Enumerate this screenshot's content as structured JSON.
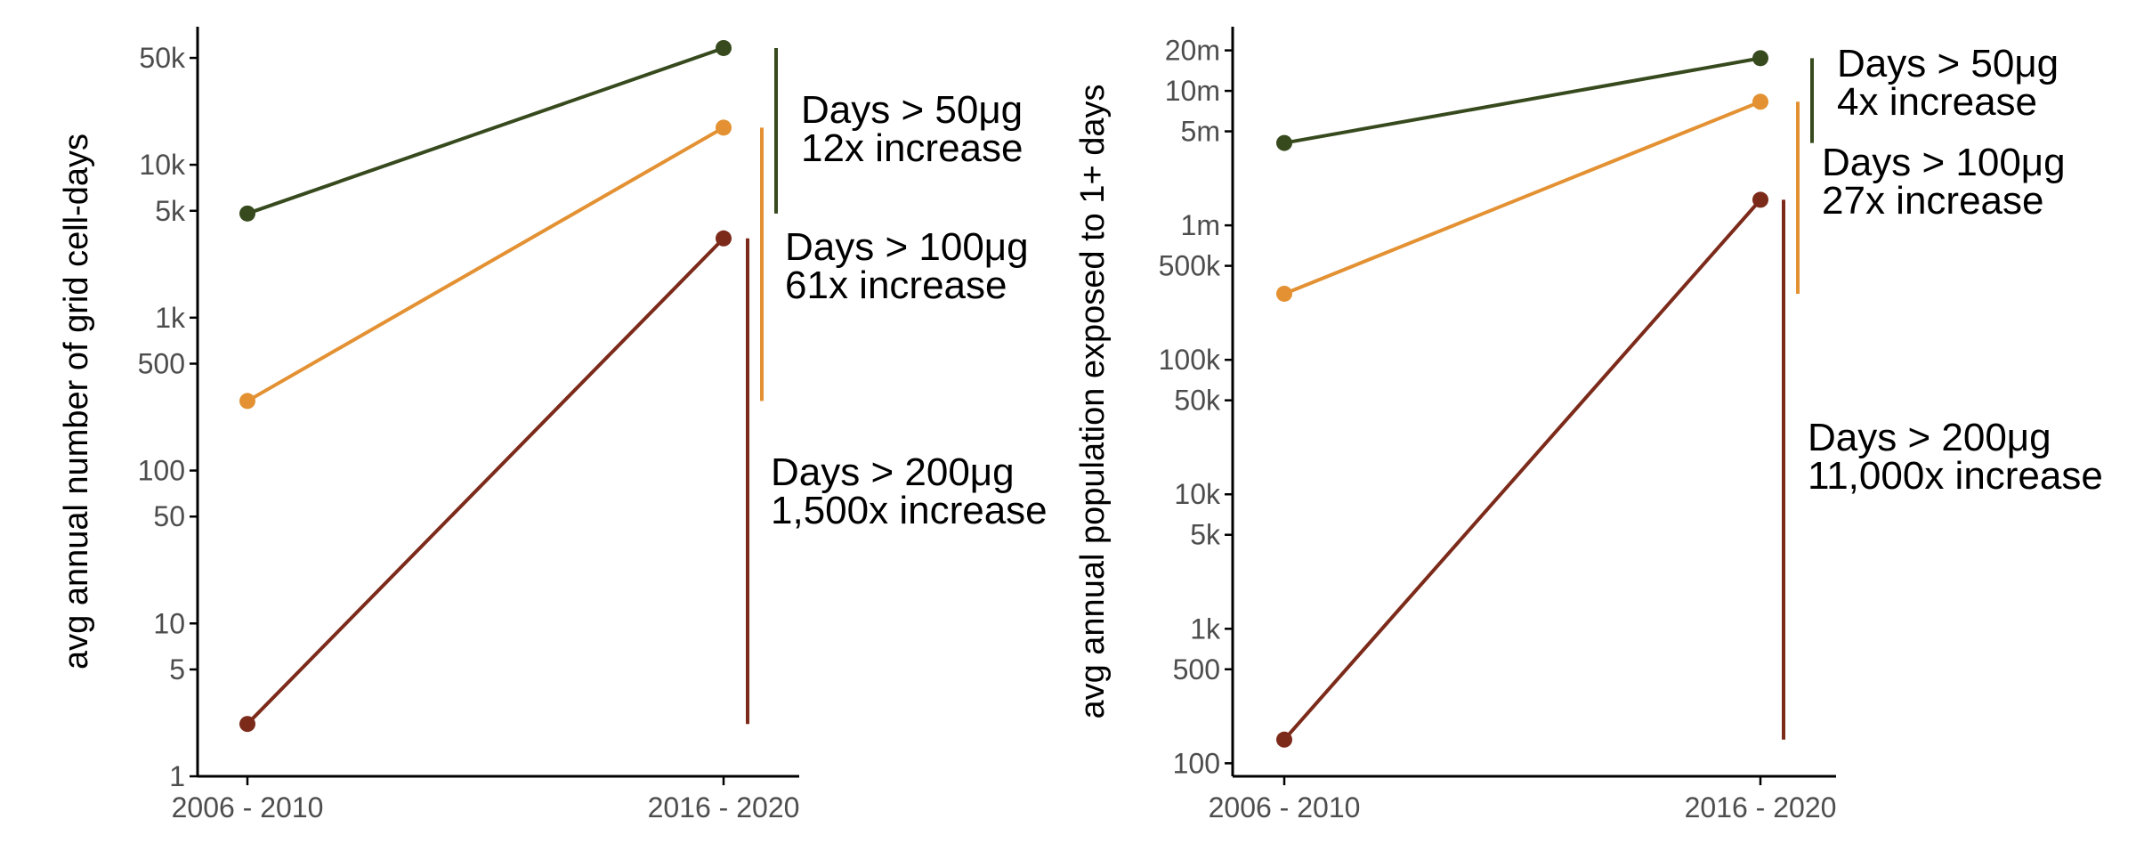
{
  "colors": {
    "gt50": "#374a1e",
    "gt100": "#e39132",
    "gt200": "#7c2a1a",
    "axis": "#000000",
    "tick": "#4d4d4d"
  },
  "chart_data": [
    {
      "type": "line",
      "ylabel": "avg annual number of grid cell-days",
      "yscale": "log",
      "ylim": [
        1,
        80000
      ],
      "categories": [
        "2006 - 2010",
        "2016 - 2020"
      ],
      "yticks": [
        1,
        5,
        10,
        50,
        100,
        500,
        1000,
        5000,
        10000,
        50000
      ],
      "yticklabels": [
        "1",
        "5",
        "10",
        "50",
        "100",
        "500",
        "1k",
        "5k",
        "10k",
        "50k"
      ],
      "series": [
        {
          "key": "gt50",
          "values": [
            4800,
            58000
          ]
        },
        {
          "key": "gt100",
          "values": [
            285,
            17500
          ]
        },
        {
          "key": "gt200",
          "values": [
            2.2,
            3300
          ]
        }
      ],
      "annotations": [
        {
          "key": "gt50",
          "line1": "Days > 50μg",
          "line2": "12x increase"
        },
        {
          "key": "gt100",
          "line1": "Days > 100μg",
          "line2": "61x increase"
        },
        {
          "key": "gt200",
          "line1": "Days > 200μg",
          "line2": "1,500x increase"
        }
      ]
    },
    {
      "type": "line",
      "ylabel": "avg annual population exposed to 1+ days",
      "yscale": "log",
      "ylim": [
        80,
        30000000
      ],
      "categories": [
        "2006 - 2010",
        "2016 - 2020"
      ],
      "yticks": [
        100,
        500,
        1000,
        5000,
        10000,
        50000,
        100000,
        500000,
        1000000,
        5000000,
        10000000,
        20000000
      ],
      "yticklabels": [
        "100",
        "500",
        "1k",
        "5k",
        "10k",
        "50k",
        "100k",
        "500k",
        "1m",
        "5m",
        "10m",
        "20m"
      ],
      "series": [
        {
          "key": "gt50",
          "values": [
            4100000,
            17500000
          ]
        },
        {
          "key": "gt100",
          "values": [
            310000,
            8300000
          ]
        },
        {
          "key": "gt200",
          "values": [
            150,
            1550000
          ]
        }
      ],
      "annotations": [
        {
          "key": "gt50",
          "line1": "Days > 50μg",
          "line2": "4x increase"
        },
        {
          "key": "gt100",
          "line1": "Days > 100μg",
          "line2": "27x increase"
        },
        {
          "key": "gt200",
          "line1": "Days > 200μg",
          "line2": "11,000x increase"
        }
      ]
    }
  ]
}
